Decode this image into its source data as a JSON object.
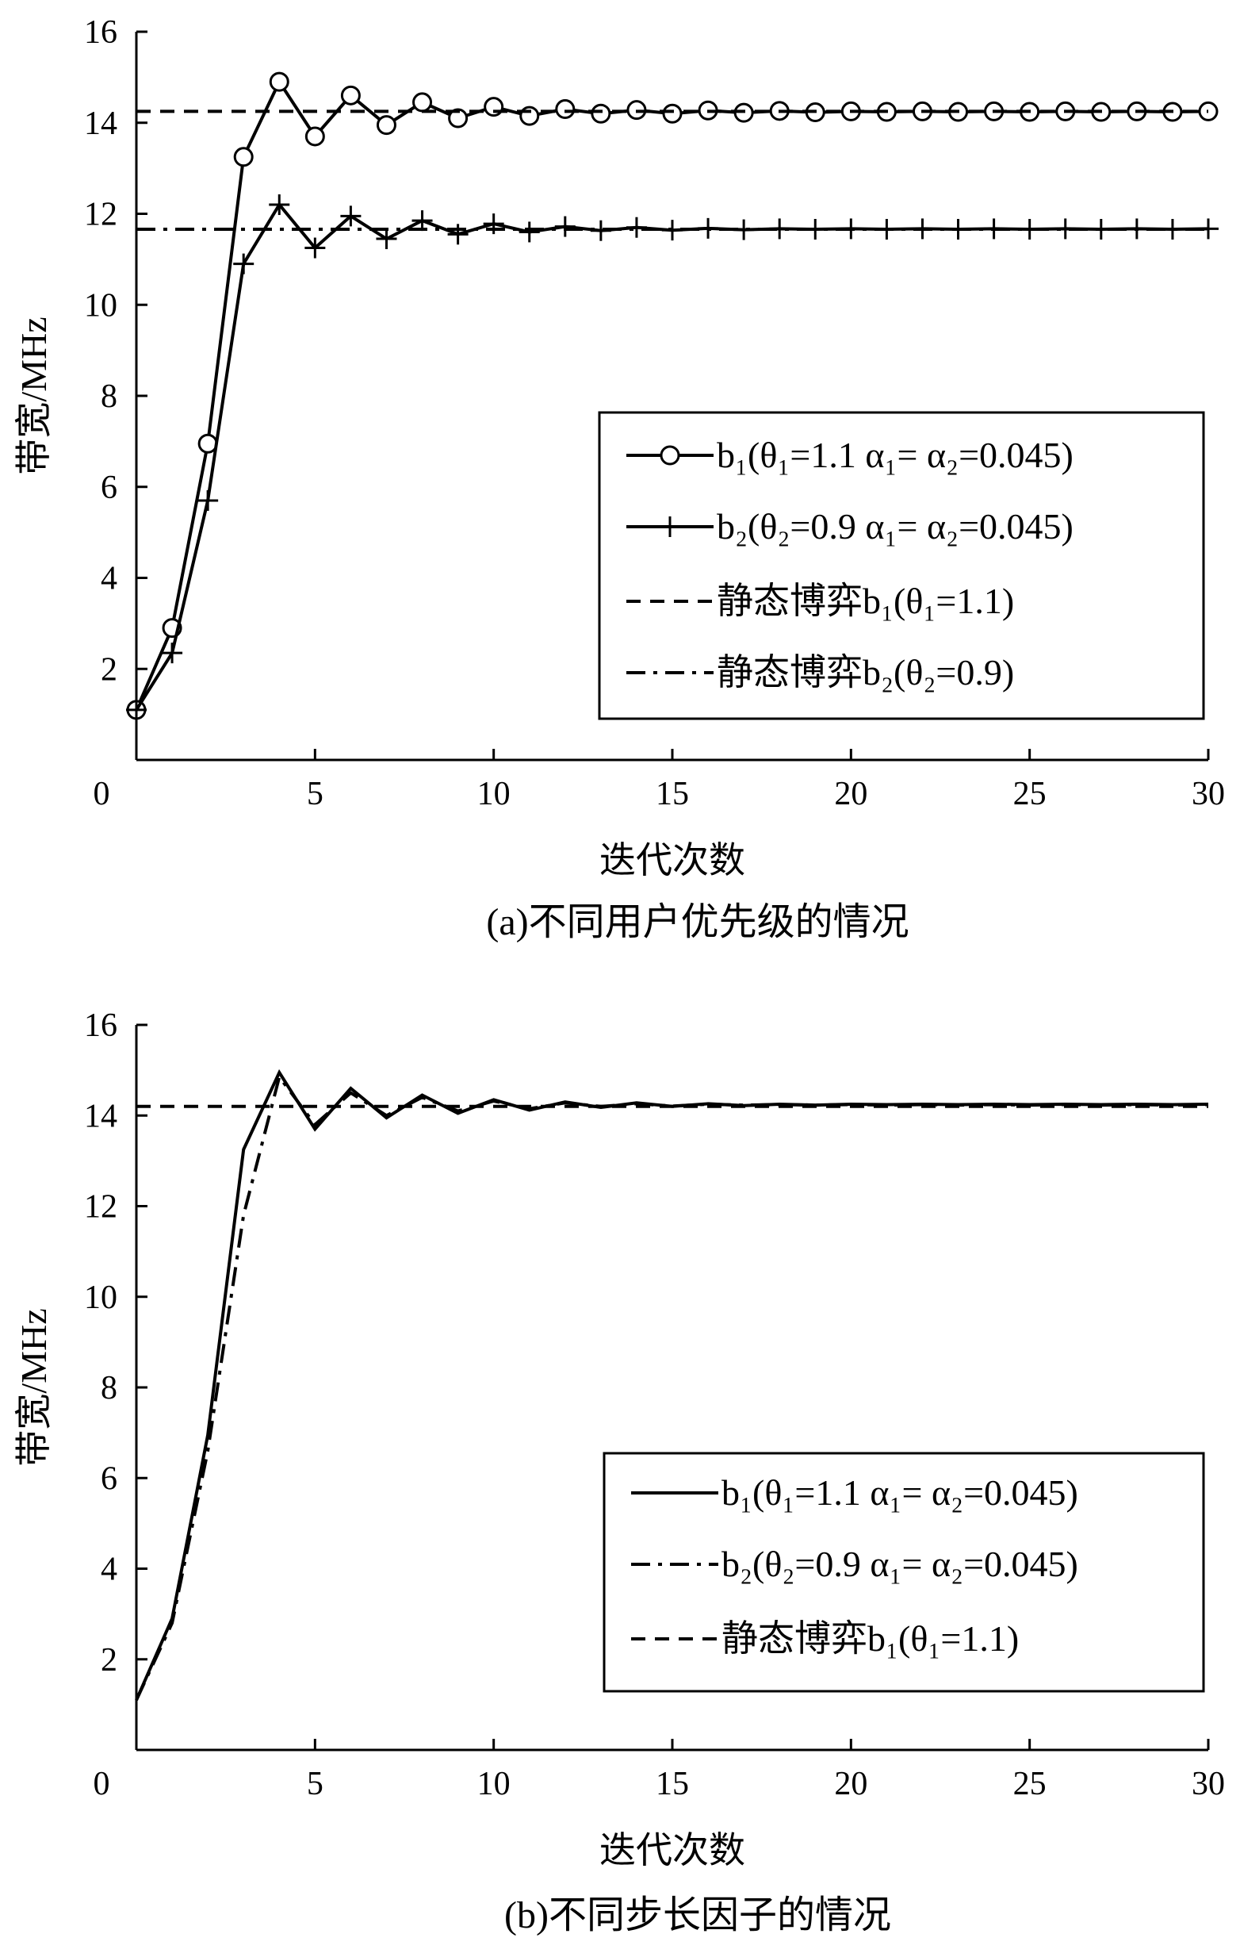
{
  "chart_data": [
    {
      "type": "line",
      "caption": "(a)不同用户优先级的情况",
      "xlabel": "迭代次数",
      "ylabel": "带宽/MHz",
      "xlim": [
        0,
        30
      ],
      "ylim": [
        0,
        16
      ],
      "xticks": [
        "0",
        "5",
        "10",
        "15",
        "20",
        "25",
        "30"
      ],
      "yticks": [
        "2",
        "4",
        "6",
        "8",
        "10",
        "12",
        "14",
        "16"
      ],
      "legend_position": "bottom-right",
      "series": [
        {
          "name": "b₁(θ₁=1.1 α₁= α₂=0.045)",
          "style": "solid",
          "marker": "circle",
          "x": [
            0,
            1,
            2,
            3,
            4,
            5,
            6,
            7,
            8,
            9,
            10,
            11,
            12,
            13,
            14,
            15,
            16,
            17,
            18,
            19,
            20,
            21,
            22,
            23,
            24,
            25,
            26,
            27,
            28,
            29,
            30
          ],
          "y": [
            1.1,
            2.9,
            6.95,
            13.25,
            14.9,
            13.7,
            14.6,
            13.95,
            14.45,
            14.1,
            14.35,
            14.15,
            14.3,
            14.2,
            14.28,
            14.2,
            14.27,
            14.22,
            14.26,
            14.23,
            14.25,
            14.24,
            14.25,
            14.24,
            14.25,
            14.24,
            14.25,
            14.24,
            14.25,
            14.24,
            14.25
          ]
        },
        {
          "name": "b₂(θ₂=0.9 α₁= α₂=0.045)",
          "style": "solid",
          "marker": "plus",
          "x": [
            0,
            1,
            2,
            3,
            4,
            5,
            6,
            7,
            8,
            9,
            10,
            11,
            12,
            13,
            14,
            15,
            16,
            17,
            18,
            19,
            20,
            21,
            22,
            23,
            24,
            25,
            26,
            27,
            28,
            29,
            30
          ],
          "y": [
            1.1,
            2.35,
            5.7,
            10.9,
            12.2,
            11.25,
            11.95,
            11.45,
            11.85,
            11.55,
            11.78,
            11.6,
            11.72,
            11.63,
            11.7,
            11.64,
            11.68,
            11.65,
            11.67,
            11.66,
            11.67,
            11.66,
            11.67,
            11.66,
            11.67,
            11.66,
            11.67,
            11.66,
            11.67,
            11.66,
            11.67
          ]
        },
        {
          "name": "静态博弈b₁(θ₁=1.1)",
          "style": "dashed",
          "marker": "none",
          "x": [
            0,
            30
          ],
          "y": [
            14.25,
            14.25
          ]
        },
        {
          "name": "静态博弈b₂(θ₂=0.9)",
          "style": "dashdot",
          "marker": "none",
          "x": [
            0,
            30
          ],
          "y": [
            11.66,
            11.66
          ]
        }
      ]
    },
    {
      "type": "line",
      "caption": "(b)不同步长因子的情况",
      "xlabel": "迭代次数",
      "ylabel": "带宽/MHz",
      "xlim": [
        0,
        30
      ],
      "ylim": [
        0,
        16
      ],
      "xticks": [
        "0",
        "5",
        "10",
        "15",
        "20",
        "25",
        "30"
      ],
      "yticks": [
        "2",
        "4",
        "6",
        "8",
        "10",
        "12",
        "14",
        "16"
      ],
      "legend_position": "bottom-right",
      "series": [
        {
          "name": "b₁(θ₁=1.1 α₁= α₂=0.045)",
          "style": "solid",
          "marker": "none",
          "x": [
            0,
            1,
            2,
            3,
            4,
            5,
            6,
            7,
            8,
            9,
            10,
            11,
            12,
            13,
            14,
            15,
            16,
            17,
            18,
            19,
            20,
            21,
            22,
            23,
            24,
            25,
            26,
            27,
            28,
            29,
            30
          ],
          "y": [
            1.1,
            2.9,
            6.95,
            13.25,
            14.95,
            13.7,
            14.6,
            13.95,
            14.45,
            14.05,
            14.35,
            14.12,
            14.3,
            14.18,
            14.28,
            14.2,
            14.26,
            14.22,
            14.25,
            14.23,
            14.25,
            14.24,
            14.25,
            14.24,
            14.25,
            14.24,
            14.25,
            14.24,
            14.25,
            14.24,
            14.25
          ]
        },
        {
          "name": "b₂(θ₂=0.9 α₁= α₂=0.045)",
          "style": "dashdot",
          "marker": "none",
          "x": [
            0,
            1,
            2,
            3,
            4,
            5,
            6,
            7,
            8,
            9,
            10,
            11,
            12,
            13,
            14,
            15,
            16,
            17,
            18,
            19,
            20,
            21,
            22,
            23,
            24,
            25,
            26,
            27,
            28,
            29,
            30
          ],
          "y": [
            1.1,
            2.8,
            6.6,
            11.8,
            14.85,
            13.8,
            14.5,
            14.0,
            14.4,
            14.1,
            14.32,
            14.15,
            14.28,
            14.2,
            14.26,
            14.21,
            14.25,
            14.23,
            14.24,
            14.23,
            14.24,
            14.23,
            14.24,
            14.23,
            14.24,
            14.23,
            14.24,
            14.23,
            14.24,
            14.23,
            14.24
          ]
        },
        {
          "name": "静态博弈b₁(θ₁=1.1)",
          "style": "dashed",
          "marker": "none",
          "x": [
            0,
            30
          ],
          "y": [
            14.2,
            14.2
          ]
        }
      ]
    }
  ]
}
